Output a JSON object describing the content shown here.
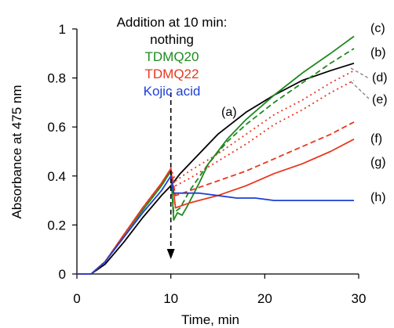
{
  "chart_data": {
    "type": "line",
    "xlabel": "Time, min",
    "ylabel": "Absorbance at 475 nm",
    "xlim": [
      0,
      30
    ],
    "ylim": [
      0,
      1
    ],
    "xticks": [
      0,
      10,
      20,
      30
    ],
    "yticks": [
      0,
      0.2,
      0.4,
      0.6,
      0.8,
      1
    ],
    "ytick_labels": [
      "0",
      "0.2",
      "0.4",
      "0.6",
      "0.8",
      "1"
    ],
    "grid": false,
    "legend_block": [
      {
        "text": "Addition at 10 min:",
        "color": "#000000"
      },
      {
        "text": "nothing",
        "color": "#000000"
      },
      {
        "text": "TDMQ20",
        "color": "#1f8a1f"
      },
      {
        "text": "TDMQ22",
        "color": "#e8371f"
      },
      {
        "text": "Kojic acid",
        "color": "#1f3fd6"
      }
    ],
    "arrow_at_x": 10,
    "series": [
      {
        "label": "(a)",
        "color": "#000000",
        "style": "solid",
        "x": [
          0,
          1.5,
          3,
          5,
          7,
          9,
          10,
          11,
          13,
          15,
          18,
          21,
          24,
          27,
          29.5
        ],
        "y": [
          0,
          0,
          0.04,
          0.13,
          0.23,
          0.32,
          0.36,
          0.41,
          0.49,
          0.57,
          0.66,
          0.73,
          0.79,
          0.83,
          0.86
        ]
      },
      {
        "label": "(b)",
        "color": "#1f8a1f",
        "style": "dashed",
        "x": [
          0,
          1.5,
          3,
          5,
          7,
          9,
          10,
          10.3,
          11,
          12,
          14,
          16,
          18,
          21,
          24,
          27,
          29.5
        ],
        "y": [
          0,
          0,
          0.05,
          0.16,
          0.26,
          0.36,
          0.42,
          0.25,
          0.27,
          0.34,
          0.45,
          0.54,
          0.61,
          0.7,
          0.78,
          0.86,
          0.92
        ]
      },
      {
        "label": "(c)",
        "color": "#1f8a1f",
        "style": "solid",
        "x": [
          0,
          1.5,
          3,
          5,
          7,
          9,
          10,
          10.3,
          10.7,
          11.2,
          11.8,
          13,
          14,
          16,
          18,
          21,
          24,
          27,
          29.5
        ],
        "y": [
          0,
          0,
          0.05,
          0.16,
          0.26,
          0.36,
          0.42,
          0.22,
          0.25,
          0.24,
          0.28,
          0.37,
          0.45,
          0.55,
          0.63,
          0.73,
          0.82,
          0.9,
          0.97
        ]
      },
      {
        "label": "(d)",
        "color": "#e8371f",
        "style": "dotted",
        "x": [
          0,
          1.5,
          3,
          5,
          7,
          9,
          10,
          10.5,
          12,
          15,
          18,
          21,
          24,
          27,
          29.5
        ],
        "y": [
          0,
          0,
          0.05,
          0.16,
          0.27,
          0.37,
          0.43,
          0.38,
          0.42,
          0.49,
          0.57,
          0.65,
          0.71,
          0.78,
          0.83
        ]
      },
      {
        "label": "(e)",
        "color": "#e8371f",
        "style": "dotted",
        "x": [
          0,
          1.5,
          3,
          5,
          7,
          9,
          10,
          10.5,
          12,
          15,
          18,
          21,
          24,
          27,
          29.5
        ],
        "y": [
          0,
          0,
          0.05,
          0.16,
          0.27,
          0.37,
          0.43,
          0.36,
          0.39,
          0.46,
          0.53,
          0.61,
          0.67,
          0.74,
          0.79
        ]
      },
      {
        "label": "(f)",
        "color": "#e8371f",
        "style": "dashed",
        "x": [
          0,
          1.5,
          3,
          5,
          7,
          9,
          10,
          10.5,
          12,
          15,
          18,
          21,
          24,
          27,
          29.5
        ],
        "y": [
          0,
          0,
          0.05,
          0.16,
          0.27,
          0.37,
          0.43,
          0.32,
          0.34,
          0.38,
          0.42,
          0.47,
          0.52,
          0.57,
          0.62
        ]
      },
      {
        "label": "(g)",
        "color": "#e8371f",
        "style": "solid",
        "x": [
          0,
          1.5,
          3,
          5,
          7,
          9,
          10,
          10.5,
          12,
          15,
          18,
          21,
          24,
          27,
          29.5
        ],
        "y": [
          0,
          0,
          0.05,
          0.16,
          0.27,
          0.37,
          0.43,
          0.27,
          0.29,
          0.32,
          0.36,
          0.41,
          0.45,
          0.5,
          0.55
        ]
      },
      {
        "label": "(h)",
        "color": "#1f3fd6",
        "style": "solid",
        "x": [
          0,
          1.5,
          3,
          5,
          7,
          9,
          10,
          10.3,
          11,
          13,
          15,
          17,
          19,
          21,
          23,
          25,
          27,
          29.5
        ],
        "y": [
          0,
          0,
          0.05,
          0.15,
          0.25,
          0.34,
          0.4,
          0.33,
          0.33,
          0.33,
          0.32,
          0.31,
          0.31,
          0.3,
          0.3,
          0.3,
          0.3,
          0.3
        ]
      }
    ]
  }
}
